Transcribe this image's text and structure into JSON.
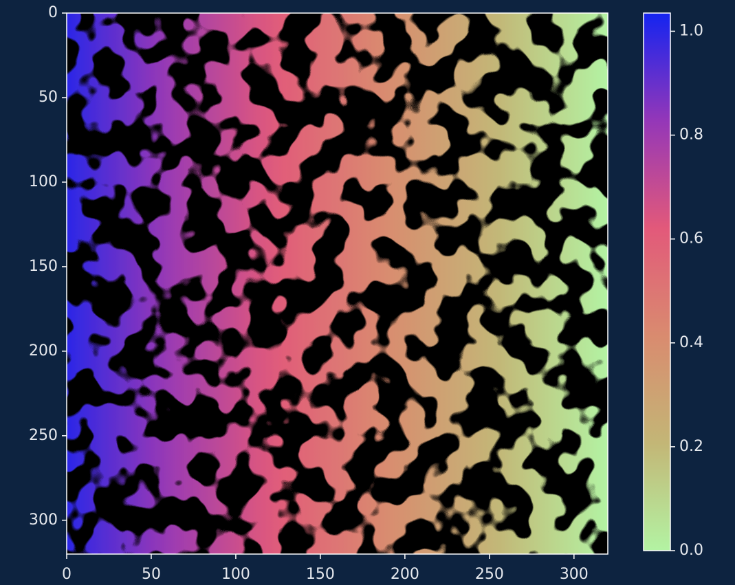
{
  "chart_data": {
    "type": "image",
    "x": [
      0,
      320
    ],
    "values": [
      1.0,
      0.0
    ],
    "xlim": [
      0,
      320
    ],
    "ylim": [
      320,
      0
    ],
    "xticks": [
      0,
      50,
      100,
      150,
      200,
      250,
      300
    ],
    "yticks": [
      0,
      50,
      100,
      150,
      200,
      250,
      300
    ],
    "colormap": [
      "#b3f3a3",
      "#c3b676",
      "#d98b6f",
      "#e2597a",
      "#9437b8",
      "#1424f0"
    ],
    "clim": [
      0,
      1.035
    ],
    "colorbar_ticks": [
      {
        "value": 0,
        "label": "0.0"
      },
      0.2,
      0.4,
      0.6,
      0.8,
      {
        "value": 1,
        "label": "1.0"
      }
    ]
  }
}
